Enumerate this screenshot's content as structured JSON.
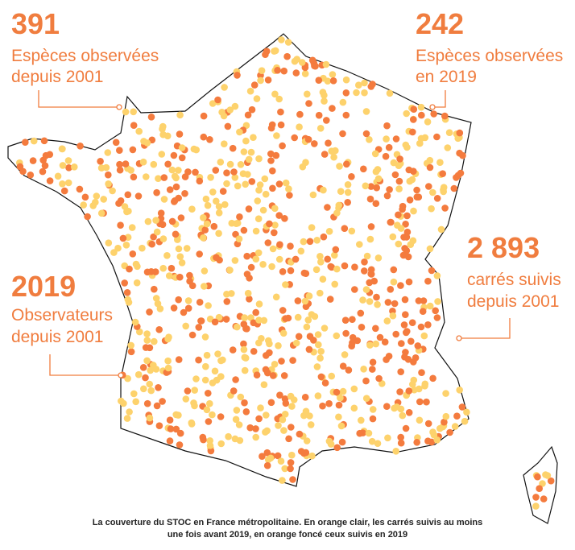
{
  "annotations": [
    {
      "number": "391",
      "lines": [
        "Espèces observées",
        "depuis 2001"
      ]
    },
    {
      "number": "242",
      "lines": [
        "Espèces observées",
        "en 2019"
      ]
    },
    {
      "number": "2 893",
      "lines": [
        "carrés suivis",
        "depuis 2001"
      ]
    },
    {
      "number": "2019",
      "lines": [
        "Observateurs",
        "depuis 2001"
      ]
    }
  ],
  "caption": [
    "La couverture du STOC en France métropolitaine. En orange clair, les carrés suivis au moins",
    "une fois avant 2019, en orange foncé ceux suivis en 2019"
  ]
}
